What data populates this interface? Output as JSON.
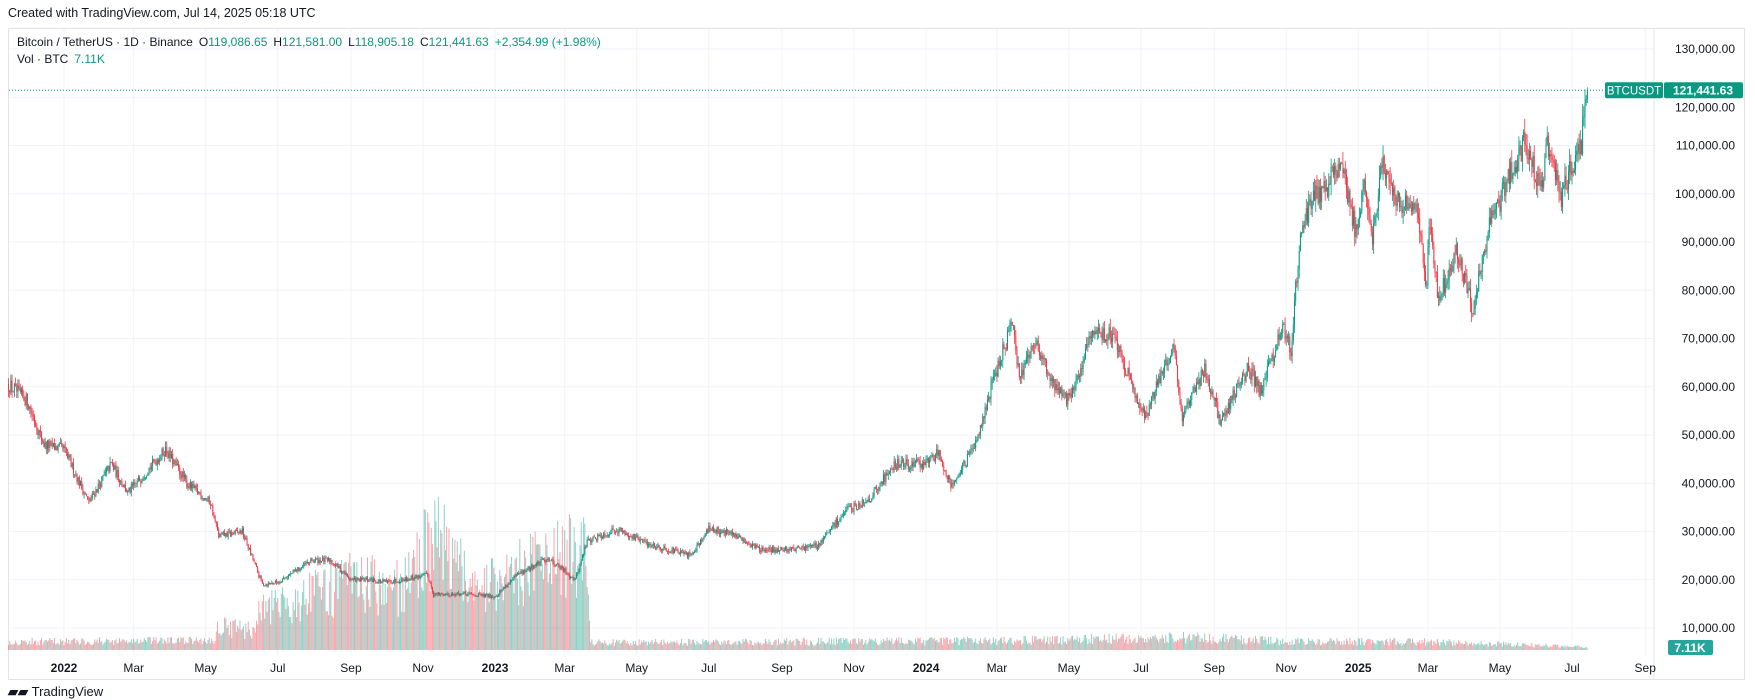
{
  "credit": "Created with TradingView.com, Jul 14, 2025 05:18 UTC",
  "legend": {
    "symbol": "Bitcoin / TetherUS · 1D · Binance",
    "open_label": "O",
    "open": "119,086.65",
    "high_label": "H",
    "high": "121,581.00",
    "low_label": "L",
    "low": "118,905.18",
    "close_label": "C",
    "close": "121,441.63",
    "change": "+2,354.99 (+1.98%)",
    "vol_label": "Vol · BTC",
    "vol": "7.11K"
  },
  "last_price_tag": {
    "symbol": "BTCUSDT",
    "price": "121,441.63"
  },
  "volume_tag": "7.11K",
  "watermark": "TradingView",
  "colors": {
    "up": "#089981",
    "down": "#f23645",
    "grid": "#f0f3fa",
    "axis_text": "#131722"
  },
  "chart_data": {
    "type": "candlestick",
    "interval": "1D",
    "symbol": "BTCUSDT",
    "exchange": "Binance",
    "y_ticks": [
      "10,000.00",
      "20,000.00",
      "30,000.00",
      "40,000.00",
      "50,000.00",
      "60,000.00",
      "70,000.00",
      "80,000.00",
      "90,000.00",
      "100,000.00",
      "110,000.00",
      "120,000.00",
      "130,000.00"
    ],
    "ylim": [
      5000,
      130000
    ],
    "grid": true,
    "x_ticks": [
      {
        "date": "2022-01-01",
        "label": "2022",
        "bold": true
      },
      {
        "date": "2022-03-01",
        "label": "Mar"
      },
      {
        "date": "2022-05-01",
        "label": "May"
      },
      {
        "date": "2022-07-01",
        "label": "Jul"
      },
      {
        "date": "2022-09-01",
        "label": "Sep"
      },
      {
        "date": "2022-11-01",
        "label": "Nov"
      },
      {
        "date": "2023-01-01",
        "label": "2023",
        "bold": true
      },
      {
        "date": "2023-03-01",
        "label": "Mar"
      },
      {
        "date": "2023-05-01",
        "label": "May"
      },
      {
        "date": "2023-07-01",
        "label": "Jul"
      },
      {
        "date": "2023-09-01",
        "label": "Sep"
      },
      {
        "date": "2023-11-01",
        "label": "Nov"
      },
      {
        "date": "2024-01-01",
        "label": "2024",
        "bold": true
      },
      {
        "date": "2024-03-01",
        "label": "Mar"
      },
      {
        "date": "2024-05-01",
        "label": "May"
      },
      {
        "date": "2024-07-01",
        "label": "Jul"
      },
      {
        "date": "2024-09-01",
        "label": "Sep"
      },
      {
        "date": "2024-11-01",
        "label": "Nov"
      },
      {
        "date": "2025-01-01",
        "label": "2025",
        "bold": true
      },
      {
        "date": "2025-03-01",
        "label": "Mar"
      },
      {
        "date": "2025-05-01",
        "label": "May"
      },
      {
        "date": "2025-07-01",
        "label": "Jul"
      },
      {
        "date": "2025-09-01",
        "label": "Sep"
      }
    ],
    "approx_close": [
      [
        "2021-11-15",
        60500
      ],
      [
        "2021-12-01",
        57000
      ],
      [
        "2021-12-15",
        48000
      ],
      [
        "2022-01-01",
        47000
      ],
      [
        "2022-01-22",
        36000
      ],
      [
        "2022-02-10",
        44000
      ],
      [
        "2022-02-24",
        38000
      ],
      [
        "2022-03-28",
        47000
      ],
      [
        "2022-04-15",
        40000
      ],
      [
        "2022-05-05",
        36000
      ],
      [
        "2022-05-12",
        29000
      ],
      [
        "2022-06-01",
        30000
      ],
      [
        "2022-06-18",
        19000
      ],
      [
        "2022-07-01",
        19500
      ],
      [
        "2022-07-30",
        24000
      ],
      [
        "2022-08-15",
        24000
      ],
      [
        "2022-09-01",
        20000
      ],
      [
        "2022-09-15",
        20000
      ],
      [
        "2022-10-01",
        19500
      ],
      [
        "2022-11-05",
        21000
      ],
      [
        "2022-11-10",
        17000
      ],
      [
        "2022-12-01",
        17000
      ],
      [
        "2023-01-01",
        16600
      ],
      [
        "2023-01-20",
        21000
      ],
      [
        "2023-02-15",
        24500
      ],
      [
        "2023-03-10",
        20000
      ],
      [
        "2023-03-20",
        28000
      ],
      [
        "2023-04-14",
        30500
      ],
      [
        "2023-05-10",
        27500
      ],
      [
        "2023-06-15",
        25000
      ],
      [
        "2023-07-01",
        30500
      ],
      [
        "2023-07-15",
        30000
      ],
      [
        "2023-08-17",
        26000
      ],
      [
        "2023-09-15",
        26500
      ],
      [
        "2023-10-01",
        27000
      ],
      [
        "2023-10-24",
        34000
      ],
      [
        "2023-11-15",
        37000
      ],
      [
        "2023-12-05",
        44000
      ],
      [
        "2024-01-01",
        44000
      ],
      [
        "2024-01-11",
        46500
      ],
      [
        "2024-01-23",
        39500
      ],
      [
        "2024-02-10",
        47000
      ],
      [
        "2024-02-28",
        62000
      ],
      [
        "2024-03-14",
        73000
      ],
      [
        "2024-03-20",
        62000
      ],
      [
        "2024-04-01",
        70000
      ],
      [
        "2024-04-17",
        61000
      ],
      [
        "2024-05-01",
        57000
      ],
      [
        "2024-05-21",
        71000
      ],
      [
        "2024-06-07",
        71000
      ],
      [
        "2024-06-24",
        60000
      ],
      [
        "2024-07-05",
        54000
      ],
      [
        "2024-07-29",
        69000
      ],
      [
        "2024-08-05",
        53000
      ],
      [
        "2024-08-24",
        64000
      ],
      [
        "2024-09-06",
        53000
      ],
      [
        "2024-09-30",
        64000
      ],
      [
        "2024-10-10",
        59000
      ],
      [
        "2024-10-29",
        72000
      ],
      [
        "2024-11-05",
        68000
      ],
      [
        "2024-11-12",
        89000
      ],
      [
        "2024-11-22",
        99000
      ],
      [
        "2024-12-05",
        101000
      ],
      [
        "2024-12-17",
        107000
      ],
      [
        "2024-12-30",
        92000
      ],
      [
        "2025-01-07",
        102000
      ],
      [
        "2025-01-13",
        91000
      ],
      [
        "2025-01-21",
        106000
      ],
      [
        "2025-02-03",
        98000
      ],
      [
        "2025-02-20",
        98000
      ],
      [
        "2025-02-28",
        80000
      ],
      [
        "2025-03-02",
        94000
      ],
      [
        "2025-03-10",
        78000
      ],
      [
        "2025-03-25",
        88000
      ],
      [
        "2025-04-08",
        76000
      ],
      [
        "2025-04-22",
        93000
      ],
      [
        "2025-05-08",
        103000
      ],
      [
        "2025-05-22",
        111000
      ],
      [
        "2025-06-05",
        101000
      ],
      [
        "2025-06-10",
        110000
      ],
      [
        "2025-06-22",
        99000
      ],
      [
        "2025-07-01",
        106000
      ],
      [
        "2025-07-09",
        111000
      ],
      [
        "2025-07-14",
        121441.63
      ]
    ],
    "approx_volume_k": [
      [
        "2021-11-15",
        40
      ],
      [
        "2022-05-08",
        45
      ],
      [
        "2022-05-12",
        120
      ],
      [
        "2022-06-10",
        90
      ],
      [
        "2022-06-15",
        180
      ],
      [
        "2022-07-10",
        220
      ],
      [
        "2022-09-01",
        320
      ],
      [
        "2022-10-15",
        300
      ],
      [
        "2022-11-10",
        550
      ],
      [
        "2022-12-15",
        280
      ],
      [
        "2023-01-15",
        350
      ],
      [
        "2023-03-20",
        480
      ],
      [
        "2023-03-23",
        35
      ],
      [
        "2024-03-10",
        45
      ],
      [
        "2024-08-05",
        60
      ],
      [
        "2024-11-15",
        40
      ],
      [
        "2025-03-01",
        40
      ],
      [
        "2025-07-13",
        15
      ],
      [
        "2025-07-14",
        7.11
      ]
    ],
    "last_close": 121441.63,
    "last_volume_k": 7.11
  }
}
